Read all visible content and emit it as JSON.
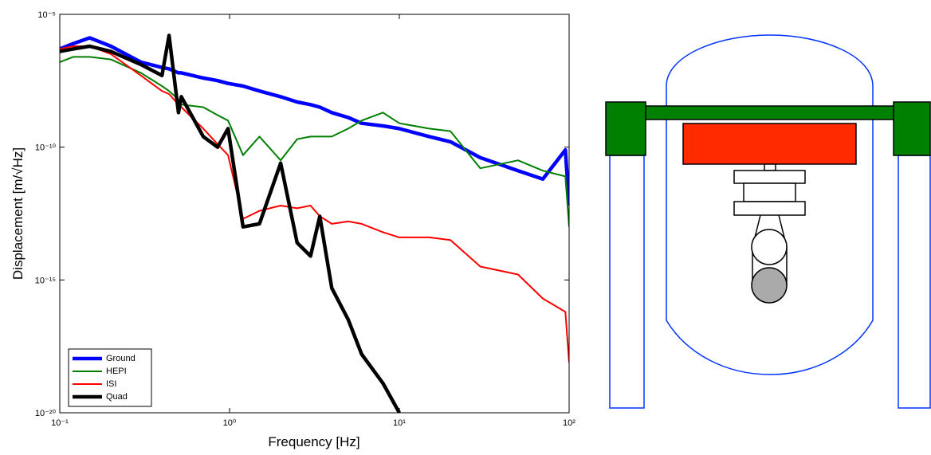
{
  "chart_data": {
    "type": "line",
    "xlabel": "Frequency [Hz]",
    "ylabel": "Displacement [m/√Hz]",
    "xscale": "log",
    "yscale": "log",
    "xlim": [
      0.1,
      100
    ],
    "ylim": [
      1e-20,
      1e-05
    ],
    "xticks": [
      {
        "value": 0.1,
        "label": "10⁻¹"
      },
      {
        "value": 1,
        "label": "10⁰"
      },
      {
        "value": 10,
        "label": "10¹"
      },
      {
        "value": 100,
        "label": "10²"
      }
    ],
    "yticks": [
      {
        "value": 1e-20,
        "label": "10⁻²⁰"
      },
      {
        "value": 1e-15,
        "label": "10⁻¹⁵"
      },
      {
        "value": 1e-10,
        "label": "10⁻¹⁰"
      },
      {
        "value": 1e-05,
        "label": "10⁻⁵"
      }
    ],
    "legend": "lower left",
    "x": [
      0.1,
      0.12,
      0.15,
      0.2,
      0.3,
      0.4,
      0.44,
      0.5,
      0.52,
      0.7,
      0.85,
      0.98,
      1.2,
      1.5,
      2,
      2.5,
      3,
      3.4,
      4,
      5,
      6,
      8,
      10,
      15,
      20,
      30,
      50,
      70,
      95,
      100
    ],
    "series": [
      {
        "name": "Ground",
        "color": "#0000ff",
        "linewidth": 4.5,
        "values": [
          5e-07,
          7.9e-07,
          1.3e-06,
          6.3e-07,
          1.6e-07,
          1e-07,
          8.9e-08,
          6.3e-08,
          6.3e-08,
          4e-08,
          3.2e-08,
          2.5e-08,
          2e-08,
          1.3e-08,
          7.9e-09,
          5e-09,
          4e-09,
          3.2e-09,
          2e-09,
          1.3e-09,
          7.9e-10,
          6.3e-10,
          5e-10,
          2.5e-10,
          1.6e-10,
          4e-11,
          1.3e-11,
          6.3e-12,
          7.9e-11,
          6.3e-13
        ]
      },
      {
        "name": "HEPI",
        "color": "#008000",
        "linewidth": 2,
        "values": [
          1.6e-07,
          2.5e-07,
          2.5e-07,
          2e-07,
          6.3e-08,
          2e-08,
          1.3e-08,
          6.3e-09,
          4e-09,
          3.2e-09,
          1.6e-09,
          1e-09,
          5e-11,
          2.5e-10,
          3.2e-11,
          2e-10,
          2.5e-10,
          2.5e-10,
          2.5e-10,
          5e-10,
          1e-09,
          2e-09,
          7.9e-10,
          5e-10,
          4e-10,
          1.6e-11,
          3.2e-11,
          1.3e-11,
          7.9e-12,
          1e-13
        ]
      },
      {
        "name": "ISI",
        "color": "#ff0000",
        "linewidth": 2,
        "values": [
          5e-07,
          6.3e-07,
          6.3e-07,
          3.2e-07,
          5e-08,
          1.3e-08,
          1e-08,
          4e-09,
          3.2e-09,
          5e-10,
          1.3e-10,
          5e-11,
          2e-13,
          4e-13,
          6.3e-13,
          5e-13,
          6.3e-13,
          2.5e-13,
          1.3e-13,
          1.6e-13,
          1.3e-13,
          6.3e-14,
          4e-14,
          4e-14,
          3.2e-14,
          3.2e-15,
          1.6e-15,
          2e-16,
          6.3e-17,
          7.9e-19
        ]
      },
      {
        "name": "Quad",
        "color": "#000000",
        "linewidth": 4.5,
        "values": [
          4e-07,
          5e-07,
          6.3e-07,
          4e-07,
          1.3e-07,
          5e-08,
          1.6e-06,
          2e-09,
          7.9e-09,
          2.5e-10,
          1e-10,
          5e-10,
          1e-13,
          1.3e-13,
          2.5e-11,
          2.5e-14,
          7.9e-15,
          2.5e-13,
          5e-16,
          3.2e-17,
          1.6e-18,
          1.3e-19,
          1e-20,
          null,
          null,
          null,
          null,
          null,
          null,
          null
        ]
      }
    ]
  }
}
